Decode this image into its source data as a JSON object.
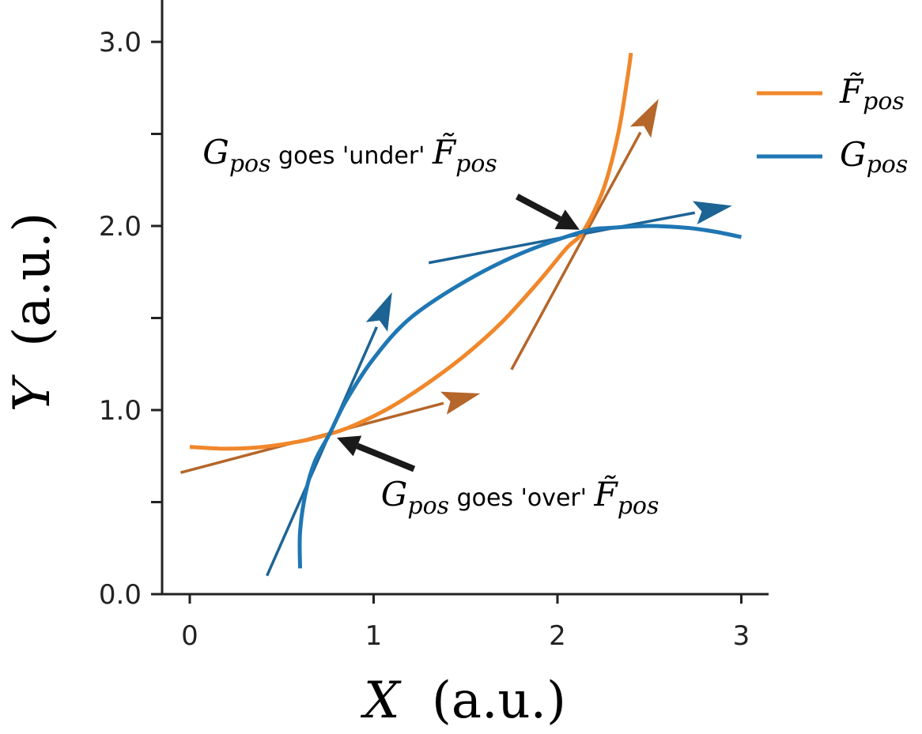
{
  "chart_data": {
    "type": "line",
    "xlabel": {
      "var": "X",
      "unit": "(a.u.)"
    },
    "ylabel": {
      "var": "Y",
      "unit": "(a.u.)"
    },
    "xlim": [
      -0.15,
      3.15
    ],
    "ylim": [
      0.0,
      3.3
    ],
    "x_ticks": [
      0,
      1,
      2,
      3
    ],
    "x_tick_labels": [
      "0",
      "1",
      "2",
      "3"
    ],
    "y_ticks": [
      0.0,
      0.5,
      1.0,
      1.5,
      2.0,
      2.5,
      3.0
    ],
    "y_tick_labels": [
      "0.0",
      "",
      "1.0",
      "",
      "2.0",
      "",
      "3.0"
    ],
    "grid": false,
    "legend_position": "top-right",
    "series": [
      {
        "name": "F̃",
        "name_sub": "pos",
        "color": "#f0872b",
        "x": [
          0.0,
          0.2,
          0.4,
          0.6,
          0.76,
          0.9,
          1.1,
          1.3,
          1.5,
          1.7,
          1.9,
          2.05,
          2.14,
          2.25,
          2.33,
          2.38,
          2.4
        ],
        "y": [
          0.8,
          0.79,
          0.8,
          0.83,
          0.87,
          0.92,
          1.02,
          1.15,
          1.3,
          1.48,
          1.7,
          1.88,
          1.97,
          2.2,
          2.5,
          2.8,
          2.94
        ]
      },
      {
        "name": "G",
        "name_sub": "pos",
        "color": "#1f77b4",
        "x": [
          0.6,
          0.6,
          0.63,
          0.68,
          0.76,
          0.85,
          1.0,
          1.2,
          1.5,
          1.8,
          2.14,
          2.3,
          2.5,
          2.7,
          2.85,
          3.0
        ],
        "y": [
          0.14,
          0.34,
          0.55,
          0.72,
          0.87,
          1.05,
          1.28,
          1.5,
          1.7,
          1.85,
          1.97,
          1.99,
          2.0,
          1.99,
          1.97,
          1.94
        ]
      }
    ],
    "tangent_arrows": [
      {
        "series": "F̃",
        "color": "#b5662a",
        "x": [
          -0.05,
          1.58
        ],
        "y": [
          0.66,
          1.09
        ]
      },
      {
        "series": "F̃",
        "color": "#b5662a",
        "x": [
          1.75,
          2.55
        ],
        "y": [
          1.22,
          2.69
        ]
      },
      {
        "series": "G",
        "color": "#1d6495",
        "x": [
          0.42,
          1.1
        ],
        "y": [
          0.1,
          1.64
        ]
      },
      {
        "series": "G",
        "color": "#1d6495",
        "x": [
          1.3,
          2.95
        ],
        "y": [
          1.8,
          2.11
        ]
      }
    ],
    "annotations": [
      {
        "name": "under",
        "math_pre": "G",
        "math_pre_sub": "pos",
        "text": " goes 'under' ",
        "math_post": "F̃",
        "math_post_sub": "pos",
        "text_x": 0.07,
        "text_y": 2.34,
        "target": [
          2.12,
          1.98
        ],
        "arrow_from": [
          1.78,
          2.16
        ]
      },
      {
        "name": "over",
        "math_pre": "G",
        "math_pre_sub": "pos",
        "text": " goes 'over' ",
        "math_post": "F̃",
        "math_post_sub": "pos",
        "text_x": 1.04,
        "text_y": 0.48,
        "target": [
          0.8,
          0.85
        ],
        "arrow_from": [
          1.22,
          0.68
        ]
      }
    ]
  }
}
